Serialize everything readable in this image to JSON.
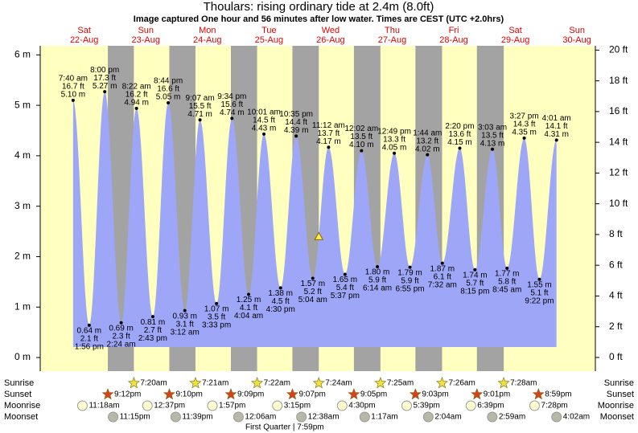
{
  "chart_data": {
    "type": "tide",
    "title": "Thoulars: rising  ordinary tide at 2.4m (8.0ft)",
    "subtitle": "Image captured One hour and 56 minutes after low water. Times are CEST (UTC +2.0hrs)",
    "color": "#9ea6f7",
    "background_color": "#ffffc0",
    "night_color": "#a3a3a3",
    "day_label_color": "#e00000",
    "current_height": 2.4,
    "ylim": [
      -0.27,
      6.18
    ],
    "yticks": [
      {
        "value": 0,
        "label": "0 m"
      },
      {
        "value": 1,
        "label": "1 m"
      },
      {
        "value": 2,
        "label": "2 m"
      },
      {
        "value": 3,
        "label": "3 m"
      },
      {
        "value": 4,
        "label": "4 m"
      },
      {
        "value": 5,
        "label": "5 m"
      },
      {
        "value": 6,
        "label": "6 m"
      }
    ],
    "y2lim": [
      -0.89,
      20.28
    ],
    "y2ticks": [
      {
        "value": 0,
        "label": "0 ft"
      },
      {
        "value": 2,
        "label": "2 ft"
      },
      {
        "value": 4,
        "label": "4 ft"
      },
      {
        "value": 6,
        "label": "6 ft"
      },
      {
        "value": 8,
        "label": "8 ft"
      },
      {
        "value": 10,
        "label": "10 ft"
      },
      {
        "value": 12,
        "label": "12 ft"
      },
      {
        "value": 14,
        "label": "14 ft"
      },
      {
        "value": 16,
        "label": "16 ft"
      },
      {
        "value": 18,
        "label": "18 ft"
      },
      {
        "value": 20,
        "label": "20 ft"
      }
    ],
    "times": [
      "7:40 am",
      "1:56 pm",
      "8:00 pm",
      "2:24 am",
      "8:22 am",
      "2:43 pm",
      "8:44 pm",
      "3:12 am",
      "9:07 am",
      "3:33 pm",
      "9:34 pm",
      "4:04 am",
      "10:01 am",
      "4:30 pm",
      "10:35 pm",
      "5:04 am",
      "11:12 am",
      "5:37 pm",
      "12:02 am",
      "6:14 am",
      "12:49 pm",
      "6:55 pm",
      "1:44 am",
      "7:32 am",
      "2:20 pm",
      "8:15 pm",
      "3:03 am",
      "8:45 am",
      "3:27 pm",
      "9:22 pm",
      "4:01 am"
    ],
    "values": [
      5.1,
      0.64,
      5.27,
      0.69,
      4.94,
      0.81,
      5.05,
      0.93,
      4.71,
      1.07,
      4.74,
      1.25,
      4.43,
      1.38,
      4.39,
      1.57,
      4.17,
      1.65,
      4.1,
      1.8,
      4.05,
      1.79,
      4.02,
      1.87,
      4.15,
      1.74,
      4.13,
      1.77,
      4.35,
      1.55,
      4.31
    ],
    "value_labels": [
      "5.10 m",
      "0.64 m",
      "5.27 m",
      "0.69 m",
      "4.94 m",
      "0.81 m",
      "5.05 m",
      "0.93 m",
      "4.71 m",
      "1.07 m",
      "4.74 m",
      "1.25 m",
      "4.43 m",
      "1.38 m",
      "4.39 m",
      "1.57 m",
      "4.17 m",
      "1.65 m",
      "4.10 m",
      "1.80 m",
      "4.05 m",
      "1.79 m",
      "4.02 m",
      "1.87 m",
      "4.15 m",
      "1.74 m",
      "4.13 m",
      "1.77 m",
      "4.35 m",
      "1.55 m",
      "4.31 m"
    ],
    "ft_labels": [
      "16.7 ft",
      "2.1 ft",
      "17.3 ft",
      "2.3 ft",
      "16.2 ft",
      "2.7 ft",
      "16.6 ft",
      "3.1 ft",
      "15.5 ft",
      "3.5 ft",
      "15.6 ft",
      "4.1 ft",
      "14.5 ft",
      "4.5 ft",
      "14.4 ft",
      "5.2 ft",
      "13.7 ft",
      "5.4 ft",
      "13.5 ft",
      "5.9 ft",
      "13.3 ft",
      "5.9 ft",
      "13.2 ft",
      "6.1 ft",
      "13.6 ft",
      "5.7 ft",
      "13.5 ft",
      "5.8 ft",
      "14.3 ft",
      "5.1 ft",
      "14.1 ft"
    ],
    "days": [
      {
        "day": "Sat",
        "date": "22-Aug",
        "sunrise": null,
        "sunset": "9:12pm",
        "moonrise": "11:18am",
        "moonset": "11:15pm"
      },
      {
        "day": "Sun",
        "date": "23-Aug",
        "sunrise": "7:20am",
        "sunset": "9:10pm",
        "moonrise": "12:37pm",
        "moonset": "11:39pm"
      },
      {
        "day": "Mon",
        "date": "24-Aug",
        "sunrise": "7:21am",
        "sunset": "9:09pm",
        "moonrise": "1:57pm",
        "moonset": null
      },
      {
        "day": "Tue",
        "date": "25-Aug",
        "sunrise": "7:22am",
        "sunset": "9:07pm",
        "moonrise": "3:15pm",
        "moonset": "12:06am"
      },
      {
        "day": "Wed",
        "date": "26-Aug",
        "sunrise": "7:24am",
        "sunset": "9:05pm",
        "moonrise": "4:30pm",
        "moonset": "12:38am"
      },
      {
        "day": "Thu",
        "date": "27-Aug",
        "sunrise": "7:25am",
        "sunset": "9:03pm",
        "moonrise": "5:39pm",
        "moonset": "1:17am"
      },
      {
        "day": "Fri",
        "date": "28-Aug",
        "sunrise": "7:26am",
        "sunset": "9:01pm",
        "moonrise": "6:39pm",
        "moonset": "2:04am"
      },
      {
        "day": "Sat",
        "date": "29-Aug",
        "sunrise": "7:28am",
        "sunset": "8:59pm",
        "moonrise": "7:28pm",
        "moonset": "2:59am"
      },
      {
        "day": "Sun",
        "date": "30-Aug",
        "sunrise": null,
        "sunset": null,
        "moonrise": null,
        "moonset": "4:02am"
      }
    ],
    "row_labels": {
      "sunrise": "Sunrise",
      "sunset": "Sunset",
      "moonrise": "Moonrise",
      "moonset": "Moonset"
    },
    "moon_phase": "First Quarter | 7:59pm"
  }
}
